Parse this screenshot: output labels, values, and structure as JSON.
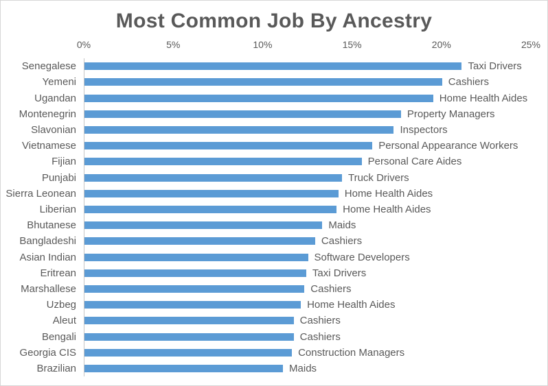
{
  "title": "Most Common Job By Ancestry",
  "colors": {
    "bar": "#5b9bd5",
    "title_text": "#595959",
    "label_text": "#595959",
    "axis_line": "#c6c6c6",
    "canvas_border": "#d6d6d6",
    "background": "#ffffff"
  },
  "chart_data": {
    "type": "bar",
    "orientation": "horizontal",
    "title": "Most Common Job By Ancestry",
    "xlabel": "",
    "ylabel": "",
    "xlim": [
      0,
      25
    ],
    "x_unit": "%",
    "grid": false,
    "legend": false,
    "axis_ticks_position": "top",
    "x_ticks": [
      "0%",
      "5%",
      "10%",
      "15%",
      "20%",
      "25%"
    ],
    "x_tick_values": [
      0,
      5,
      10,
      15,
      20,
      25
    ],
    "categories": [
      "Senegalese",
      "Yemeni",
      "Ugandan",
      "Montenegrin",
      "Slavonian",
      "Vietnamese",
      "Fijian",
      "Punjabi",
      "Sierra Leonean",
      "Liberian",
      "Bhutanese",
      "Bangladeshi",
      "Asian Indian",
      "Eritrean",
      "Marshallese",
      "Uzbeg",
      "Aleut",
      "Bengali",
      "Georgia CIS",
      "Brazilian"
    ],
    "values": [
      21.1,
      20.0,
      19.5,
      17.7,
      17.3,
      16.1,
      15.5,
      14.4,
      14.2,
      14.1,
      13.3,
      12.9,
      12.5,
      12.4,
      12.3,
      12.1,
      11.7,
      11.7,
      11.6,
      11.1
    ],
    "point_labels": [
      "Taxi Drivers",
      "Cashiers",
      "Home Health Aides",
      "Property Managers",
      "Inspectors",
      "Personal Appearance Workers",
      "Personal Care Aides",
      "Truck Drivers",
      "Home Health Aides",
      "Home Health Aides",
      "Maids",
      "Cashiers",
      "Software Developers",
      "Taxi Drivers",
      "Cashiers",
      "Home Health Aides",
      "Cashiers",
      "Cashiers",
      "Construction Managers",
      "Maids"
    ]
  }
}
